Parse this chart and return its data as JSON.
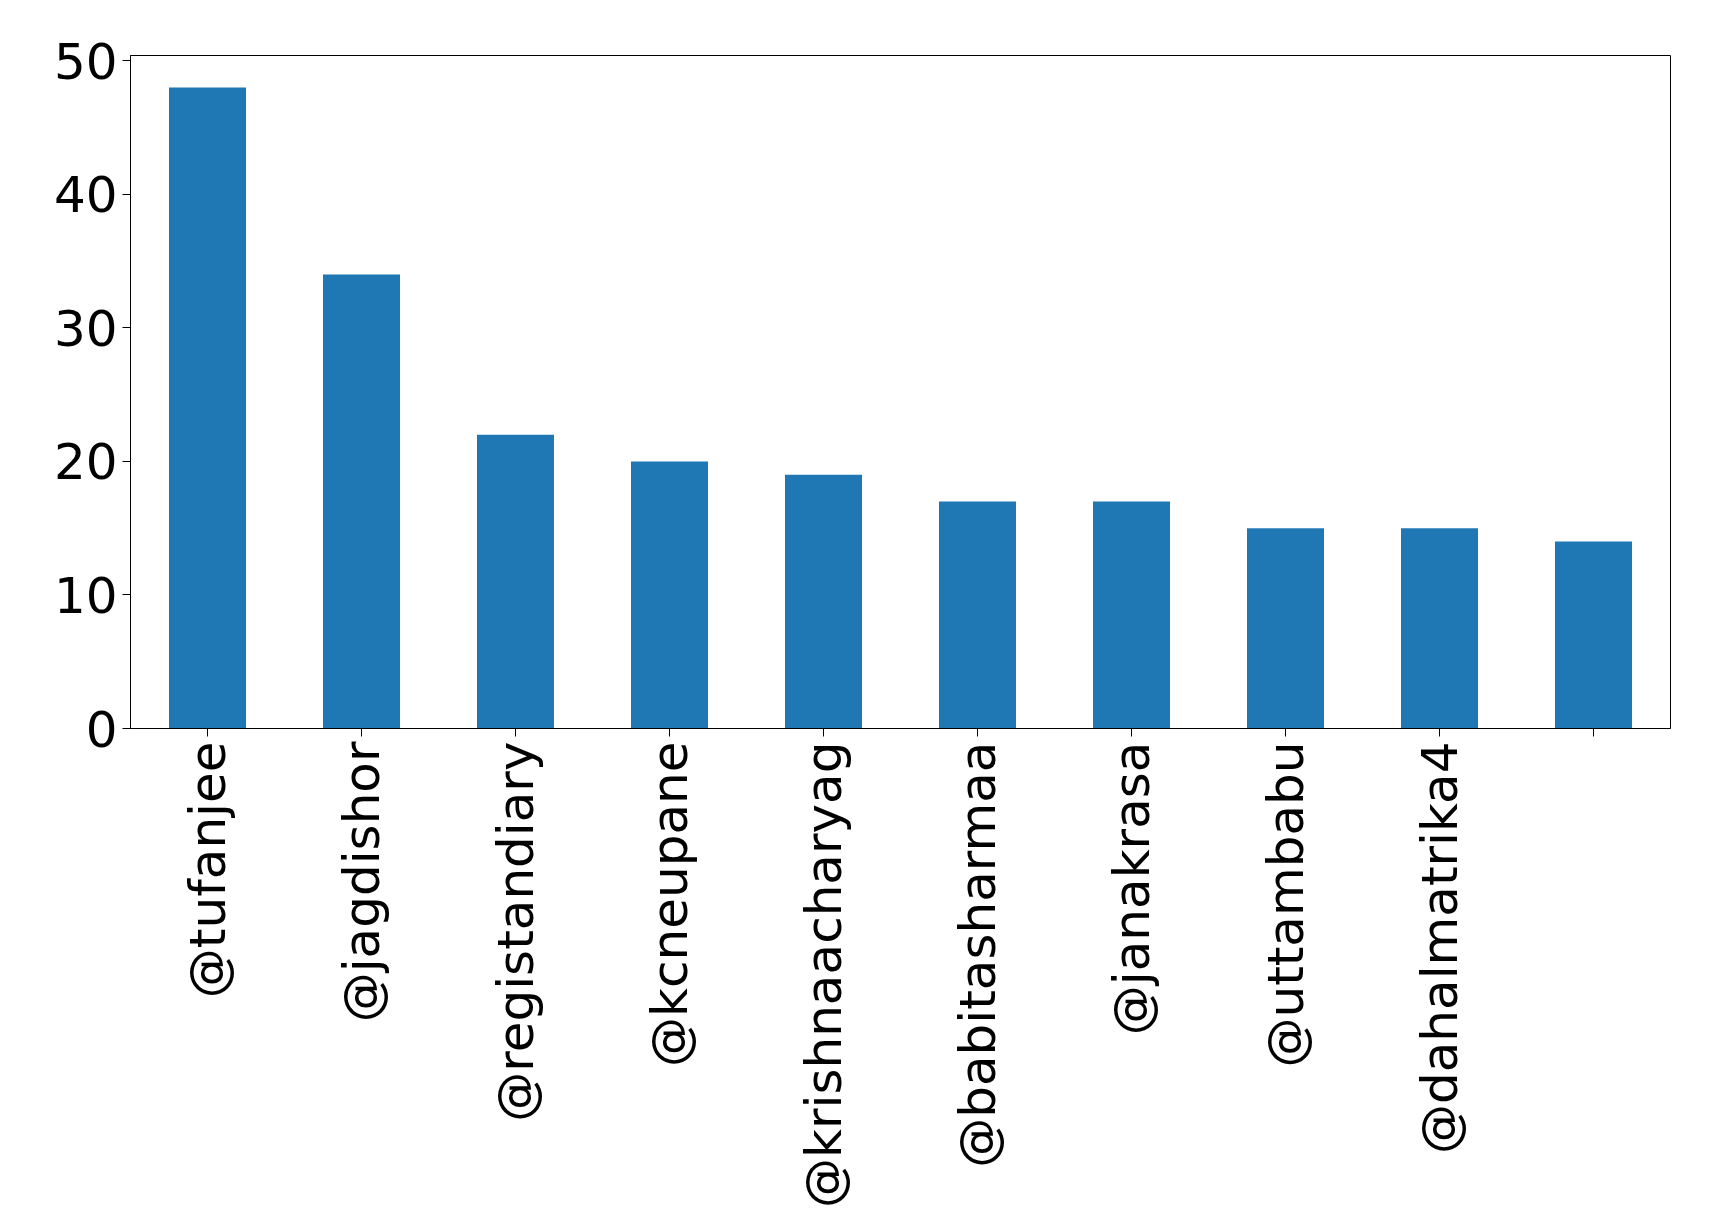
{
  "chart_data": {
    "type": "bar",
    "categories": [
      "@tufanjee",
      "@jagdishor",
      "@registandiary",
      "@kcneupane",
      "@krishnaacharyag",
      "@babitasharmaa",
      "@janakrasa",
      "@uttambabu",
      "@dahalmatrika4",
      null
    ],
    "values": [
      48,
      34,
      22,
      20,
      19,
      17,
      17,
      15,
      15,
      14
    ],
    "color": "#1f77b4",
    "ylim": [
      0,
      50.4
    ],
    "yticks": [
      0,
      10,
      20,
      30,
      40,
      50
    ],
    "grid": false
  }
}
